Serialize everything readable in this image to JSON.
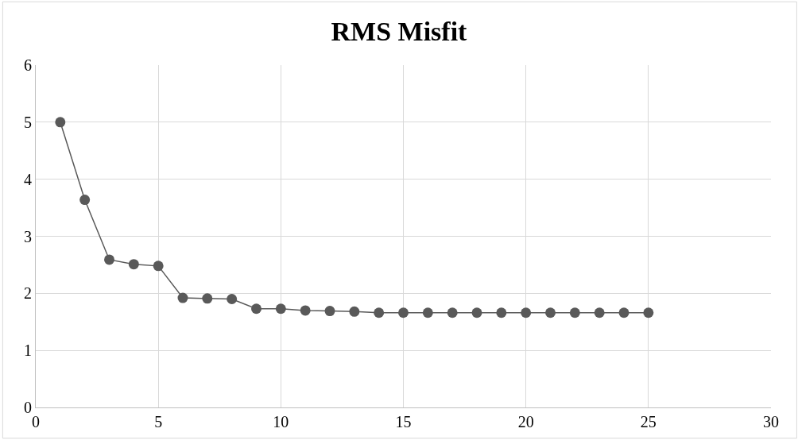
{
  "chart_data": {
    "type": "line",
    "title": "RMS Misfit",
    "x": [
      1,
      2,
      3,
      4,
      5,
      6,
      7,
      8,
      9,
      10,
      11,
      12,
      13,
      14,
      15,
      16,
      17,
      18,
      19,
      20,
      21,
      22,
      23,
      24,
      25
    ],
    "series": [
      {
        "color": "#595959",
        "values": [
          5.0,
          3.64,
          2.59,
          2.51,
          2.48,
          1.92,
          1.91,
          1.9,
          1.73,
          1.73,
          1.7,
          1.69,
          1.68,
          1.66,
          1.66,
          1.66,
          1.66,
          1.66,
          1.66,
          1.66,
          1.66,
          1.66,
          1.66,
          1.66,
          1.66
        ]
      }
    ],
    "xlim": [
      0,
      30
    ],
    "xticks": [
      0,
      5,
      10,
      15,
      20,
      25,
      30
    ],
    "ylim": [
      0,
      6
    ],
    "yticks": [
      0,
      1,
      2,
      3,
      4,
      5,
      6
    ],
    "grid": true,
    "marker": "circle",
    "line_style": "solid"
  }
}
